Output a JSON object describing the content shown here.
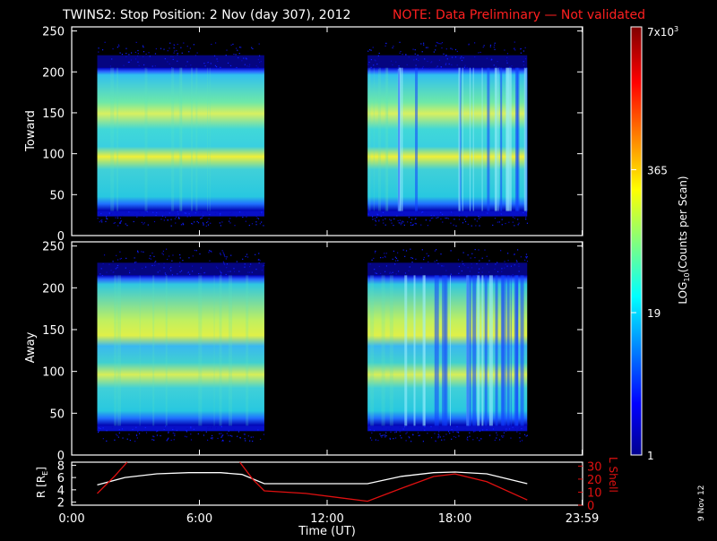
{
  "title": {
    "main": "TWINS2: Stop Position:  2 Nov (day 307), 2012",
    "note": "NOTE: Data Preliminary — Not validated"
  },
  "colors": {
    "note": "#ff2020",
    "lshell": "#e01010",
    "background": "#000000",
    "axes": "#ffffff"
  },
  "date_stamp": "9 Nov 12",
  "chart_data": [
    {
      "type": "heatmap",
      "panel": "toward",
      "ylabel": "Toward",
      "ylim": [
        0,
        255
      ],
      "yticks": [
        0,
        50,
        100,
        150,
        200,
        250
      ],
      "xlim_hours": [
        0,
        24
      ],
      "data_intervals_hours": [
        [
          1.2,
          9.05
        ],
        [
          13.9,
          21.4
        ]
      ],
      "band_edges_y": [
        30,
        205
      ],
      "bright_bands_y": [
        [
          85,
          105
        ],
        [
          140,
          160
        ]
      ]
    },
    {
      "type": "heatmap",
      "panel": "away",
      "ylabel": "Away",
      "ylim": [
        0,
        255
      ],
      "yticks": [
        0,
        50,
        100,
        150,
        200,
        250
      ],
      "xlim_hours": [
        0,
        24
      ],
      "data_intervals_hours": [
        [
          1.2,
          9.05
        ],
        [
          13.9,
          21.4
        ]
      ],
      "band_edges_y": [
        35,
        215
      ],
      "bright_bands_y": [
        [
          92,
          112
        ],
        [
          140,
          165
        ]
      ]
    },
    {
      "type": "line",
      "panel": "orbit",
      "xlabel": "Time (UT)",
      "xticks": [
        "0:00",
        "6:00",
        "12:00",
        "18:00",
        "23:59"
      ],
      "xtick_hours": [
        0,
        6,
        12,
        18,
        23.98
      ],
      "ylabel_left": "R [R",
      "ylabel_left_sub": "E",
      "ylabel_left_end": "]",
      "yticks_left": [
        2,
        4,
        6,
        8
      ],
      "ylim_left": [
        1.5,
        8.5
      ],
      "ylabel_right": "L Shell",
      "yticks_right": [
        0,
        10,
        20,
        30
      ],
      "ylim_right": [
        0,
        33
      ],
      "series": [
        {
          "axis": "left",
          "x": [
            1.2,
            2.5,
            4.0,
            5.5,
            7.0,
            8.0,
            9.05,
            11.0,
            13.9,
            15.5,
            17.0,
            18.0,
            19.5,
            21.4
          ],
          "y": [
            4.8,
            6.0,
            6.6,
            6.8,
            6.8,
            6.5,
            5.0,
            5.0,
            5.0,
            6.2,
            6.8,
            6.9,
            6.6,
            5.0
          ]
        },
        {
          "axis": "right",
          "x": [
            1.2,
            2.0,
            2.6
          ],
          "y": [
            9,
            22,
            33
          ]
        },
        {
          "axis": "right",
          "x": [
            7.9,
            8.5,
            9.05,
            11.0,
            13.9,
            15.5,
            17.0,
            18.0,
            19.5,
            21.4
          ],
          "y": [
            33,
            20,
            11,
            9,
            3,
            13,
            22,
            24,
            18,
            4
          ]
        }
      ]
    }
  ],
  "colorbar": {
    "label_pre": "LOG",
    "label_sub": "10",
    "label_post": "(Counts per Scan)",
    "tick_labels": [
      "1",
      "19",
      "365"
    ],
    "tick_values": [
      1,
      19,
      365
    ],
    "max_base": "7x10",
    "max_exp": "3",
    "max_value": 7000
  }
}
